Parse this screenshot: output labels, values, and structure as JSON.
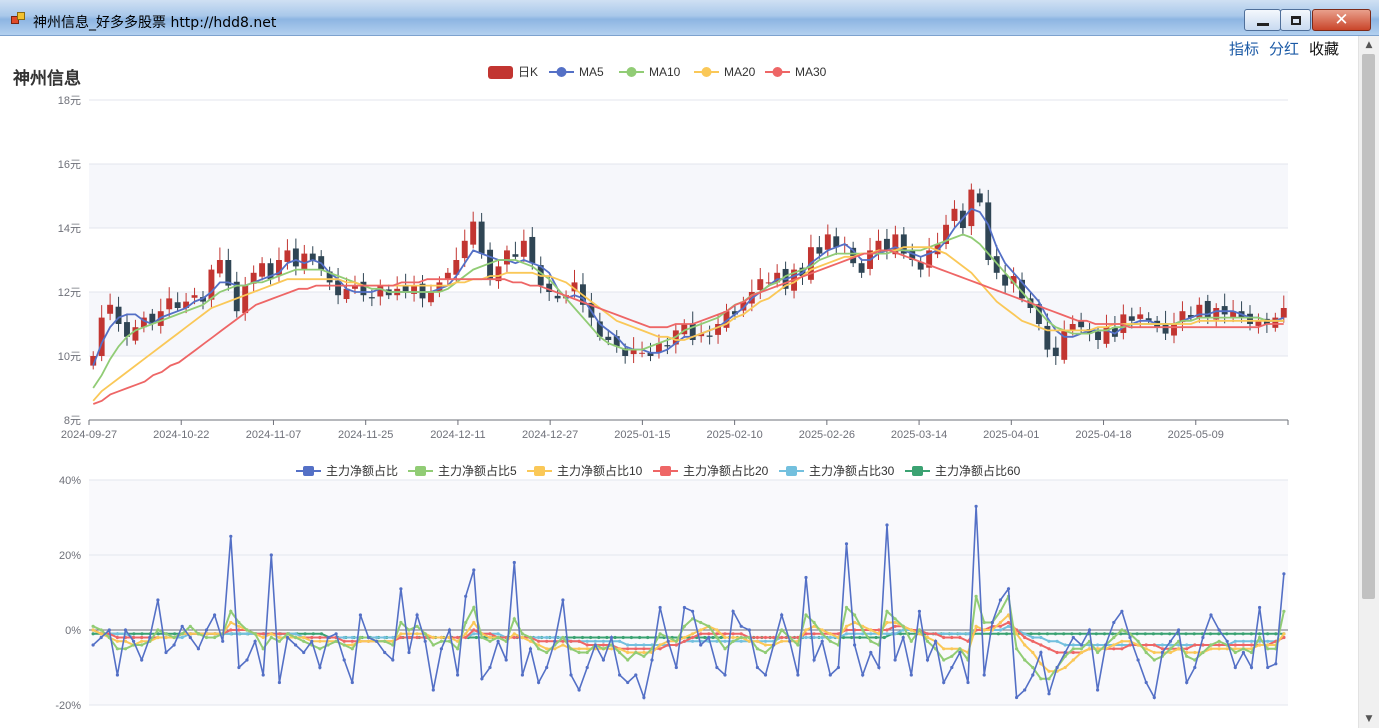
{
  "window": {
    "title": "神州信息_好多多股票  http://hdd8.net",
    "minimize_label": "minimize",
    "maximize_label": "maximize"
  },
  "toplinks": {
    "indicators": "指标",
    "dividend": "分红",
    "favorite": "收藏"
  },
  "stock": {
    "name": "神州信息"
  },
  "colors": {
    "up": "#c23531",
    "down": "#2f4554",
    "ma5": "#5470c6",
    "ma10": "#91cc75",
    "ma20": "#fac858",
    "ma30": "#ee6666",
    "p5": "#91cc75",
    "p10": "#fac858",
    "p20": "#ee6666",
    "p30": "#73c0de",
    "p60": "#3ba272",
    "base": "#5470c6"
  },
  "kline": {
    "legend": [
      "日K",
      "MA5",
      "MA10",
      "MA20",
      "MA30"
    ],
    "y_ticks": [
      "8元",
      "10元",
      "12元",
      "14元",
      "16元",
      "18元"
    ],
    "ylim": [
      8,
      18
    ],
    "x_labels": [
      "2024-09-27",
      "2024-10-22",
      "2024-11-07",
      "2024-11-25",
      "2024-12-11",
      "2024-12-27",
      "2025-01-15",
      "2025-02-10",
      "2025-02-26",
      "2025-03-14",
      "2025-04-01",
      "2025-04-18",
      "2025-05-09"
    ],
    "close": [
      10.0,
      11.2,
      11.6,
      11.0,
      10.6,
      10.9,
      11.2,
      11.0,
      11.4,
      11.8,
      11.5,
      11.7,
      11.9,
      11.7,
      12.7,
      13.0,
      12.2,
      11.4,
      12.2,
      12.6,
      12.9,
      12.4,
      13.0,
      13.3,
      12.8,
      13.2,
      13.0,
      12.7,
      12.3,
      11.9,
      12.1,
      12.2,
      11.9,
      11.8,
      12.2,
      11.9,
      12.1,
      12.0,
      12.2,
      11.8,
      12.0,
      12.3,
      12.6,
      13.0,
      13.6,
      14.2,
      13.2,
      12.4,
      12.8,
      13.3,
      13.1,
      13.6,
      12.9,
      12.2,
      12.0,
      11.8,
      11.9,
      12.3,
      11.6,
      11.2,
      10.6,
      10.5,
      10.3,
      10.0,
      10.2,
      10.1,
      10.0,
      10.4,
      10.3,
      10.8,
      11.0,
      10.5,
      10.7,
      10.6,
      11.0,
      11.4,
      11.3,
      11.7,
      12.0,
      12.4,
      12.3,
      12.6,
      12.1,
      12.7,
      12.5,
      13.4,
      13.2,
      13.8,
      13.4,
      13.5,
      12.9,
      12.6,
      13.3,
      13.6,
      13.3,
      13.8,
      13.2,
      13.0,
      12.7,
      13.3,
      13.5,
      14.1,
      14.6,
      14.0,
      15.2,
      14.8,
      13.0,
      12.6,
      12.2,
      12.5,
      11.8,
      11.5,
      11.0,
      10.2,
      10.0,
      10.8,
      11.0,
      10.9,
      10.7,
      10.5,
      10.9,
      10.6,
      11.3,
      11.1,
      11.3,
      11.1,
      10.9,
      10.7,
      11.0,
      11.4,
      11.2,
      11.6,
      11.2,
      11.5,
      11.3,
      11.4,
      11.2,
      11.0,
      11.1,
      11.0,
      11.2,
      11.5
    ],
    "ma5": [
      9.7,
      10.4,
      10.9,
      11.2,
      11.3,
      11.3,
      11.1,
      11.0,
      11.2,
      11.3,
      11.4,
      11.5,
      11.7,
      11.8,
      12.0,
      12.3,
      12.3,
      12.2,
      12.2,
      12.3,
      12.4,
      12.5,
      12.6,
      12.9,
      13.0,
      12.9,
      13.0,
      12.9,
      12.6,
      12.4,
      12.1,
      12.0,
      12.0,
      12.0,
      12.1,
      12.0,
      12.0,
      12.0,
      12.0,
      12.0,
      12.0,
      12.1,
      12.2,
      12.5,
      12.9,
      13.3,
      13.2,
      13.1,
      13.0,
      13.0,
      12.9,
      13.0,
      12.9,
      12.8,
      12.6,
      12.1,
      11.8,
      11.9,
      11.8,
      11.4,
      11.0,
      10.8,
      10.6,
      10.3,
      10.2,
      10.2,
      10.1,
      10.1,
      10.2,
      10.4,
      10.6,
      10.6,
      10.7,
      10.8,
      10.9,
      11.1,
      11.3,
      11.5,
      11.8,
      12.0,
      12.2,
      12.4,
      12.4,
      12.5,
      12.6,
      12.9,
      13.1,
      13.3,
      13.4,
      13.5,
      13.3,
      13.0,
      13.0,
      13.2,
      13.3,
      13.4,
      13.3,
      13.2,
      13.1,
      13.2,
      13.3,
      13.6,
      14.0,
      14.3,
      14.6,
      14.5,
      14.1,
      13.4,
      12.9,
      12.6,
      12.3,
      12.0,
      11.7,
      11.2,
      10.8,
      10.6,
      10.6,
      10.7,
      10.8,
      10.8,
      10.8,
      10.7,
      10.9,
      11.0,
      11.1,
      11.1,
      11.0,
      11.0,
      11.0,
      11.1,
      11.2,
      11.3,
      11.3,
      11.4,
      11.4,
      11.4,
      11.3,
      11.2,
      11.2,
      11.1,
      11.1,
      11.2
    ],
    "ma10": [
      9.0,
      9.4,
      9.9,
      10.3,
      10.6,
      10.8,
      10.9,
      11.0,
      11.1,
      11.2,
      11.3,
      11.4,
      11.5,
      11.6,
      11.8,
      12.0,
      12.1,
      12.2,
      12.2,
      12.3,
      12.3,
      12.4,
      12.5,
      12.6,
      12.7,
      12.7,
      12.7,
      12.7,
      12.6,
      12.5,
      12.4,
      12.3,
      12.2,
      12.1,
      12.1,
      12.0,
      12.0,
      12.0,
      12.0,
      12.0,
      12.0,
      12.0,
      12.1,
      12.3,
      12.5,
      12.7,
      12.8,
      12.9,
      13.0,
      13.0,
      13.0,
      12.9,
      12.8,
      12.6,
      12.4,
      12.1,
      11.8,
      11.5,
      11.2,
      10.9,
      10.6,
      10.4,
      10.3,
      10.2,
      10.2,
      10.2,
      10.3,
      10.4,
      10.5,
      10.6,
      10.8,
      10.9,
      11.0,
      11.1,
      11.2,
      11.4,
      11.6,
      11.7,
      11.9,
      12.0,
      12.2,
      12.3,
      12.5,
      12.6,
      12.7,
      12.8,
      13.0,
      13.1,
      13.2,
      13.2,
      13.2,
      13.2,
      13.2,
      13.2,
      13.2,
      13.3,
      13.3,
      13.3,
      13.3,
      13.4,
      13.5,
      13.6,
      13.7,
      13.8,
      13.7,
      13.5,
      13.2,
      12.9,
      12.6,
      12.3,
      12.0,
      11.7,
      11.4,
      11.1,
      10.9,
      10.8,
      10.7,
      10.7,
      10.7,
      10.8,
      10.8,
      10.9,
      10.9,
      11.0,
      11.0,
      11.0,
      11.0,
      11.0,
      11.0,
      11.1,
      11.1,
      11.2,
      11.2,
      11.2,
      11.2,
      11.2,
      11.2,
      11.2,
      11.2,
      11.1,
      11.1,
      11.1
    ],
    "ma20": [
      8.6,
      8.9,
      9.1,
      9.3,
      9.5,
      9.7,
      9.9,
      10.1,
      10.3,
      10.5,
      10.7,
      10.9,
      11.1,
      11.3,
      11.5,
      11.6,
      11.7,
      11.8,
      11.9,
      12.0,
      12.1,
      12.2,
      12.3,
      12.4,
      12.4,
      12.4,
      12.4,
      12.4,
      12.4,
      12.4,
      12.3,
      12.3,
      12.2,
      12.2,
      12.2,
      12.2,
      12.2,
      12.2,
      12.2,
      12.2,
      12.2,
      12.2,
      12.2,
      12.3,
      12.3,
      12.4,
      12.4,
      12.5,
      12.5,
      12.6,
      12.6,
      12.6,
      12.6,
      12.5,
      12.5,
      12.4,
      12.3,
      12.1,
      11.9,
      11.7,
      11.5,
      11.3,
      11.1,
      11.0,
      10.9,
      10.8,
      10.7,
      10.6,
      10.6,
      10.5,
      10.5,
      10.6,
      10.7,
      10.8,
      10.9,
      11.0,
      11.2,
      11.3,
      11.5,
      11.7,
      11.8,
      12.0,
      12.2,
      12.3,
      12.5,
      12.7,
      12.8,
      12.9,
      13.0,
      13.1,
      13.1,
      13.2,
      13.2,
      13.3,
      13.3,
      13.3,
      13.4,
      13.4,
      13.4,
      13.4,
      13.3,
      13.2,
      13.0,
      12.8,
      12.6,
      12.3,
      12.0,
      11.7,
      11.5,
      11.3,
      11.1,
      11.0,
      10.9,
      10.8,
      10.8,
      10.8,
      10.8,
      10.8,
      10.8,
      10.9,
      10.9,
      11.0,
      11.0,
      11.0,
      11.0,
      11.0,
      11.0,
      11.0,
      11.0,
      11.0,
      11.0,
      11.1,
      11.1,
      11.1,
      11.1,
      11.1,
      11.1,
      11.1,
      11.1,
      11.1,
      11.1,
      11.1
    ],
    "ma30": [
      8.5,
      8.6,
      8.8,
      8.9,
      9.0,
      9.1,
      9.2,
      9.4,
      9.5,
      9.7,
      9.8,
      10.0,
      10.2,
      10.4,
      10.6,
      10.8,
      11.0,
      11.2,
      11.4,
      11.6,
      11.7,
      11.8,
      11.9,
      12.0,
      12.1,
      12.1,
      12.2,
      12.2,
      12.2,
      12.2,
      12.2,
      12.2,
      12.2,
      12.2,
      12.2,
      12.2,
      12.3,
      12.3,
      12.3,
      12.4,
      12.4,
      12.4,
      12.4,
      12.4,
      12.4,
      12.4,
      12.4,
      12.4,
      12.4,
      12.3,
      12.3,
      12.2,
      12.2,
      12.1,
      12.0,
      11.9,
      11.8,
      11.7,
      11.6,
      11.5,
      11.4,
      11.3,
      11.2,
      11.1,
      11.0,
      10.9,
      10.9,
      10.9,
      11.0,
      11.0,
      11.0,
      11.1,
      11.2,
      11.3,
      11.4,
      11.6,
      11.7,
      11.9,
      12.0,
      12.1,
      12.2,
      12.3,
      12.4,
      12.5,
      12.6,
      12.7,
      12.8,
      12.9,
      13.0,
      13.1,
      13.2,
      13.2,
      13.3,
      13.3,
      13.2,
      13.1,
      13.0,
      12.9,
      12.8,
      12.7,
      12.6,
      12.5,
      12.4,
      12.3,
      12.2,
      12.1,
      12.0,
      11.9,
      11.8,
      11.7,
      11.6,
      11.5,
      11.4,
      11.3,
      11.2,
      11.1,
      11.1,
      11.0,
      11.0,
      11.0,
      11.0,
      10.9,
      10.9,
      10.9,
      10.9,
      10.9,
      10.9,
      10.9,
      10.9,
      10.9,
      10.9,
      10.9,
      10.9,
      10.9,
      10.9,
      10.9,
      10.9,
      11.0,
      11.0,
      11.0
    ]
  },
  "flow": {
    "legend": [
      "主力净额占比",
      "主力净额占比5",
      "主力净额占比10",
      "主力净额占比20",
      "主力净额占比30",
      "主力净额占比60"
    ],
    "y_ticks": [
      "-20%",
      "0%",
      "20%",
      "40%"
    ],
    "ylim": [
      -20,
      40
    ],
    "base": [
      -4,
      -2,
      0,
      -12,
      0,
      -3,
      -8,
      -2,
      8,
      -6,
      -4,
      1,
      -2,
      -5,
      0,
      4,
      -3,
      25,
      -10,
      -8,
      -3,
      -12,
      20,
      -14,
      -2,
      -4,
      -6,
      -3,
      -10,
      -2,
      -1,
      -8,
      -14,
      4,
      -2,
      -3,
      -6,
      -8,
      11,
      -6,
      4,
      -3,
      -16,
      -5,
      0,
      -12,
      9,
      16,
      -13,
      -10,
      -3,
      -8,
      18,
      -12,
      -5,
      -14,
      -10,
      -3,
      8,
      -12,
      -16,
      -10,
      -4,
      -8,
      -2,
      -12,
      -14,
      -12,
      -18,
      -8,
      6,
      -3,
      -10,
      6,
      5,
      -4,
      -2,
      -10,
      -12,
      5,
      1,
      0,
      -10,
      -12,
      -4,
      4,
      -3,
      -12,
      14,
      -8,
      -3,
      -12,
      -10,
      23,
      -4,
      -12,
      -6,
      -10,
      28,
      -8,
      -2,
      -12,
      5,
      -8,
      -3,
      -14,
      -10,
      -6,
      -14,
      33,
      -12,
      2,
      8,
      11,
      -18,
      -16,
      -12,
      -6,
      -17,
      -10,
      -6,
      -2,
      -4,
      0,
      -16,
      -4,
      2,
      5,
      -2,
      -8,
      -14,
      -18,
      -6,
      -3,
      0,
      -14,
      -10,
      -2,
      4,
      0,
      -3,
      -10,
      -6,
      -10,
      6,
      -10,
      -9,
      15
    ],
    "p5": [
      1,
      0,
      -2,
      -5,
      -5,
      -4,
      -4,
      -3,
      0,
      -1,
      -2,
      -1,
      1,
      -1,
      -2,
      -2,
      -1,
      5,
      2,
      0,
      -1,
      -5,
      -2,
      -3,
      -1,
      -2,
      -3,
      -4,
      -5,
      -4,
      -3,
      -4,
      -5,
      -2,
      -2,
      -3,
      -3,
      -4,
      2,
      0,
      1,
      -1,
      -4,
      -3,
      -3,
      -5,
      2,
      6,
      -2,
      -3,
      -2,
      -3,
      3,
      -1,
      -2,
      -5,
      -6,
      -4,
      -2,
      -5,
      -6,
      -6,
      -4,
      -5,
      -4,
      -6,
      -8,
      -6,
      -7,
      -5,
      -1,
      -2,
      -3,
      1,
      3,
      2,
      1,
      -2,
      -5,
      -3,
      -2,
      -2,
      -5,
      -6,
      -4,
      0,
      -2,
      -4,
      4,
      2,
      -1,
      -3,
      -4,
      6,
      4,
      0,
      -3,
      -4,
      5,
      3,
      1,
      -3,
      0,
      -3,
      -5,
      -8,
      -7,
      -5,
      -8,
      9,
      2,
      2,
      5,
      9,
      -5,
      -8,
      -10,
      -13,
      -13,
      -10,
      -7,
      -5,
      -5,
      -3,
      -6,
      -4,
      -2,
      0,
      -1,
      -3,
      -6,
      -8,
      -7,
      -5,
      -3,
      -7,
      -8,
      -6,
      -4,
      -3,
      -4,
      -6,
      -5,
      -6,
      -2,
      -5,
      -5,
      5
    ],
    "p10": [
      0,
      -1,
      -2,
      -3,
      -3,
      -4,
      -3,
      -3,
      -2,
      -2,
      -2,
      -1,
      -1,
      -1,
      -1,
      -1,
      -1,
      2,
      1,
      0,
      -1,
      -2,
      -1,
      -2,
      -2,
      -2,
      -2,
      -3,
      -3,
      -3,
      -3,
      -4,
      -4,
      -3,
      -3,
      -3,
      -3,
      -3,
      -1,
      -1,
      -1,
      -1,
      -2,
      -2,
      -2,
      -3,
      -1,
      2,
      -1,
      -2,
      -2,
      -3,
      -1,
      -2,
      -3,
      -4,
      -5,
      -5,
      -4,
      -5,
      -5,
      -5,
      -5,
      -5,
      -5,
      -5,
      -6,
      -6,
      -6,
      -6,
      -4,
      -3,
      -3,
      -2,
      -1,
      0,
      1,
      0,
      -2,
      -2,
      -2,
      -3,
      -3,
      -4,
      -4,
      -3,
      -3,
      -3,
      0,
      1,
      0,
      -1,
      -2,
      1,
      2,
      1,
      0,
      -1,
      2,
      2,
      1,
      0,
      -1,
      -2,
      -3,
      -5,
      -5,
      -5,
      -6,
      1,
      0,
      0,
      2,
      4,
      -1,
      -4,
      -6,
      -9,
      -11,
      -11,
      -10,
      -8,
      -6,
      -5,
      -5,
      -5,
      -4,
      -3,
      -3,
      -4,
      -5,
      -6,
      -6,
      -6,
      -5,
      -6,
      -6,
      -6,
      -5,
      -5,
      -5,
      -5,
      -5,
      -5,
      -4,
      -4,
      -4,
      -1
    ],
    "p20": [
      0,
      -1,
      -1,
      -2,
      -2,
      -2,
      -2,
      -2,
      -2,
      -2,
      -2,
      -1,
      -1,
      -1,
      -1,
      -1,
      -1,
      0,
      0,
      0,
      -1,
      -1,
      -1,
      -1,
      -1,
      -2,
      -2,
      -2,
      -2,
      -2,
      -2,
      -3,
      -3,
      -3,
      -3,
      -3,
      -3,
      -3,
      -2,
      -2,
      -2,
      -2,
      -2,
      -2,
      -2,
      -2,
      -2,
      0,
      -1,
      -1,
      -2,
      -2,
      -2,
      -2,
      -2,
      -3,
      -3,
      -3,
      -3,
      -3,
      -3,
      -4,
      -4,
      -4,
      -4,
      -5,
      -5,
      -5,
      -5,
      -5,
      -5,
      -4,
      -4,
      -3,
      -2,
      -1,
      -1,
      -1,
      -1,
      -1,
      -1,
      -2,
      -2,
      -2,
      -2,
      -2,
      -2,
      -2,
      -1,
      -1,
      -1,
      -1,
      -1,
      0,
      0,
      0,
      0,
      0,
      0,
      1,
      1,
      0,
      0,
      -1,
      -1,
      -2,
      -2,
      -2,
      -3,
      0,
      0,
      1,
      1,
      2,
      0,
      -2,
      -3,
      -4,
      -5,
      -6,
      -6,
      -6,
      -6,
      -5,
      -5,
      -5,
      -5,
      -5,
      -4,
      -4,
      -4,
      -4,
      -5,
      -5,
      -5,
      -5,
      -4,
      -4,
      -4,
      -4,
      -4,
      -4,
      -4,
      -4,
      -4,
      -4,
      -3,
      -2
    ],
    "p30": [
      0,
      -1,
      -1,
      -1,
      -1,
      -2,
      -2,
      -2,
      -2,
      -2,
      -2,
      -2,
      -1,
      -1,
      -1,
      -1,
      -1,
      -1,
      -1,
      -1,
      -1,
      -1,
      -1,
      -1,
      -1,
      -1,
      -2,
      -2,
      -2,
      -2,
      -2,
      -2,
      -2,
      -2,
      -2,
      -2,
      -2,
      -2,
      -2,
      -2,
      -2,
      -2,
      -2,
      -2,
      -2,
      -2,
      -2,
      -1,
      -1,
      -1,
      -1,
      -2,
      -2,
      -2,
      -2,
      -2,
      -2,
      -2,
      -2,
      -3,
      -3,
      -3,
      -3,
      -3,
      -3,
      -3,
      -4,
      -4,
      -4,
      -4,
      -4,
      -4,
      -4,
      -3,
      -3,
      -3,
      -3,
      -3,
      -3,
      -3,
      -3,
      -3,
      -3,
      -3,
      -3,
      -2,
      -2,
      -2,
      -2,
      -2,
      -2,
      -2,
      -2,
      -1,
      -1,
      -1,
      -1,
      -1,
      -1,
      -1,
      0,
      0,
      0,
      -1,
      -1,
      -1,
      -1,
      -1,
      -1,
      0,
      0,
      0,
      0,
      1,
      0,
      -1,
      -2,
      -2,
      -3,
      -3,
      -4,
      -4,
      -4,
      -4,
      -4,
      -4,
      -4,
      -4,
      -4,
      -4,
      -4,
      -4,
      -4,
      -4,
      -4,
      -4,
      -4,
      -4,
      -4,
      -4,
      -4,
      -3,
      -3,
      -3,
      -3,
      -3,
      -3,
      -2
    ],
    "p60": [
      -1,
      -1,
      -1,
      -1,
      -1,
      -1,
      -1,
      -1,
      -1,
      -1,
      -1,
      -1,
      -1,
      -1,
      -1,
      -1,
      -1,
      -1,
      -1,
      -1,
      -1,
      -1,
      -1,
      -1,
      -1,
      -1,
      -1,
      -1,
      -1,
      -2,
      -2,
      -2,
      -2,
      -2,
      -2,
      -2,
      -2,
      -2,
      -2,
      -2,
      -2,
      -2,
      -2,
      -2,
      -2,
      -2,
      -2,
      -2,
      -2,
      -2,
      -2,
      -2,
      -2,
      -2,
      -2,
      -2,
      -2,
      -2,
      -2,
      -2,
      -2,
      -2,
      -2,
      -2,
      -2,
      -2,
      -2,
      -2,
      -2,
      -2,
      -2,
      -2,
      -2,
      -2,
      -2,
      -2,
      -2,
      -2,
      -2,
      -2,
      -2,
      -2,
      -2,
      -2,
      -2,
      -2,
      -2,
      -2,
      -2,
      -2,
      -2,
      -2,
      -2,
      -2,
      -2,
      -2,
      -2,
      -2,
      -1,
      -1,
      -1,
      -1,
      -1,
      -1,
      -1,
      -1,
      -1,
      -1,
      -1,
      -1,
      -1,
      -1,
      -1,
      -1,
      -1,
      -1,
      -1,
      -1,
      -1,
      -1,
      -1,
      -1,
      -1,
      -1,
      -1,
      -1,
      -1,
      -1,
      -1,
      -1,
      -1,
      -1,
      -1,
      -1,
      -1,
      -1,
      -1,
      -1,
      -1,
      -1,
      -1,
      -1,
      -1,
      -1,
      -1,
      -1,
      -1
    ]
  }
}
